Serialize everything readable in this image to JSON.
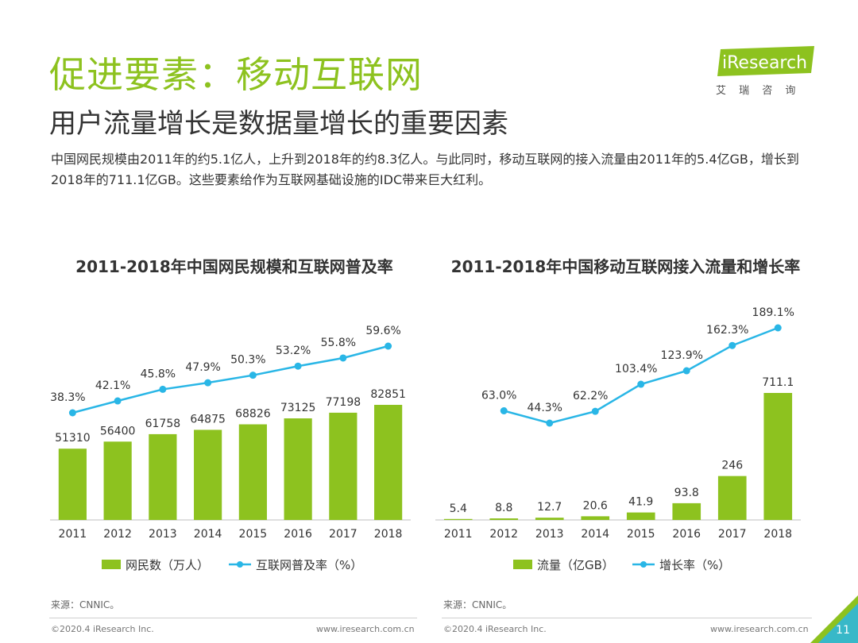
{
  "header": {
    "title": "促进要素：移动互联网",
    "subtitle": "用户流量增长是数据量增长的重要因素",
    "description": "中国网民规模由2011年的约5.1亿人，上升到2018年的约8.3亿人。与此同时，移动互联网的接入流量由2011年的5.4亿GB，增长到2018年的711.1亿GB。这些要素给作为互联网基础设施的IDC带来巨大红利。"
  },
  "logo": {
    "brand": "iResearch",
    "subtext": "艾 瑞 咨 询"
  },
  "colors": {
    "green": "#8dc21f",
    "blue": "#29b6e6",
    "title_green": "#8dc21f"
  },
  "chart_data": [
    {
      "type": "bar+line",
      "title": "2011-2018年中国网民规模和互联网普及率",
      "categories": [
        "2011",
        "2012",
        "2013",
        "2014",
        "2015",
        "2016",
        "2017",
        "2018"
      ],
      "series": [
        {
          "name": "网民数（万人）",
          "type": "bar",
          "values": [
            51310,
            56400,
            61758,
            64875,
            68826,
            73125,
            77198,
            82851
          ],
          "labels": [
            "51310",
            "56400",
            "61758",
            "64875",
            "68826",
            "73125",
            "77198",
            "82851"
          ]
        },
        {
          "name": "互联网普及率（%）",
          "type": "line",
          "values": [
            38.3,
            42.1,
            45.8,
            47.9,
            50.3,
            53.2,
            55.8,
            59.6
          ],
          "labels": [
            "38.3%",
            "42.1%",
            "45.8%",
            "47.9%",
            "50.3%",
            "53.2%",
            "55.8%",
            "59.6%"
          ]
        }
      ],
      "legend": "bottom"
    },
    {
      "type": "bar+line",
      "title": "2011-2018年中国移动互联网接入流量和增长率",
      "categories": [
        "2011",
        "2012",
        "2013",
        "2014",
        "2015",
        "2016",
        "2017",
        "2018"
      ],
      "series": [
        {
          "name": "流量（亿GB）",
          "type": "bar",
          "values": [
            5.4,
            8.8,
            12.7,
            20.6,
            41.9,
            93.8,
            246,
            711.1
          ],
          "labels": [
            "5.4",
            "8.8",
            "12.7",
            "20.6",
            "41.9",
            "93.8",
            "246",
            "711.1"
          ]
        },
        {
          "name": "增长率（%）",
          "type": "line",
          "values": [
            null,
            63.0,
            44.3,
            62.2,
            103.4,
            123.9,
            162.3,
            189.1
          ],
          "labels": [
            "",
            "63.0%",
            "44.3%",
            "62.2%",
            "103.4%",
            "123.9%",
            "162.3%",
            "189.1%"
          ]
        }
      ],
      "legend": "bottom"
    }
  ],
  "sources": {
    "left": "来源：CNNIC。",
    "right": "来源：CNNIC。"
  },
  "footer": {
    "copyright_left": "©2020.4 iResearch Inc.",
    "url_left": "www.iresearch.com.cn",
    "copyright_right": "©2020.4 iResearch Inc.",
    "url_right": "www.iresearch.com.cn",
    "page": "11"
  }
}
